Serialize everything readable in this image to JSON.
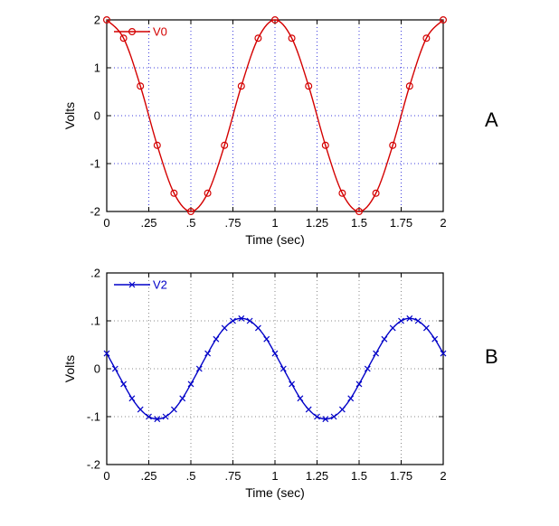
{
  "figure": {
    "background": "#ffffff"
  },
  "chart_data": [
    {
      "type": "line",
      "side_label": "A",
      "title": "",
      "xlabel": "Time (sec)",
      "ylabel": "Volts",
      "xlim": [
        0,
        2
      ],
      "ylim": [
        -2,
        2
      ],
      "grid": true,
      "grid_color": "#3d3dde",
      "legend_position": "top-left",
      "xticks": {
        "values": [
          0,
          0.25,
          0.5,
          0.75,
          1,
          1.25,
          1.5,
          1.75,
          2
        ],
        "labels": [
          "0",
          ".25",
          ".5",
          ".75",
          "1",
          "1.25",
          "1.5",
          "1.75",
          "2"
        ]
      },
      "yticks": {
        "values": [
          -2,
          -1,
          0,
          1,
          2
        ],
        "labels": [
          "-2",
          "-1",
          "0",
          "1",
          "2"
        ]
      },
      "series": [
        {
          "name": "V0",
          "color": "#d40000",
          "marker": "o",
          "x": [
            0,
            0.1,
            0.2,
            0.3,
            0.4,
            0.5,
            0.6,
            0.7,
            0.8,
            0.9,
            1,
            1.1,
            1.2,
            1.3,
            1.4,
            1.5,
            1.6,
            1.7,
            1.8,
            1.9,
            2
          ],
          "y": [
            2,
            1.618,
            0.618,
            -0.618,
            -1.618,
            -2,
            -1.618,
            -0.618,
            0.618,
            1.618,
            2,
            1.618,
            0.618,
            -0.618,
            -1.618,
            -2,
            -1.618,
            -0.618,
            0.618,
            1.618,
            2
          ]
        }
      ]
    },
    {
      "type": "line",
      "side_label": "B",
      "title": "",
      "xlabel": "Time (sec)",
      "ylabel": "Volts",
      "xlim": [
        0,
        2
      ],
      "ylim": [
        -0.2,
        0.2
      ],
      "grid": true,
      "grid_color": "#8a8a8a",
      "legend_position": "top-left",
      "xticks": {
        "values": [
          0,
          0.25,
          0.5,
          0.75,
          1,
          1.25,
          1.5,
          1.75,
          2
        ],
        "labels": [
          "0",
          ".25",
          ".5",
          ".75",
          "1",
          "1.25",
          "1.5",
          "1.75",
          "2"
        ]
      },
      "yticks": {
        "values": [
          -0.2,
          -0.1,
          0,
          0.1,
          0.2
        ],
        "labels": [
          "-.2",
          "-.1",
          "0",
          ".1",
          ".2"
        ]
      },
      "series": [
        {
          "name": "V2",
          "color": "#0000c8",
          "marker": "x",
          "x": [
            0,
            0.05,
            0.1,
            0.15,
            0.2,
            0.25,
            0.3,
            0.35,
            0.4,
            0.45,
            0.5,
            0.55,
            0.6,
            0.65,
            0.7,
            0.75,
            0.8,
            0.85,
            0.9,
            0.95,
            1,
            1.05,
            1.1,
            1.15,
            1.2,
            1.25,
            1.3,
            1.35,
            1.4,
            1.45,
            1.5,
            1.55,
            1.6,
            1.65,
            1.7,
            1.75,
            1.8,
            1.85,
            1.9,
            1.95,
            2
          ],
          "y": [
            0.032,
            0,
            -0.032,
            -0.062,
            -0.085,
            -0.1,
            -0.105,
            -0.1,
            -0.085,
            -0.062,
            -0.032,
            0,
            0.032,
            0.062,
            0.085,
            0.1,
            0.105,
            0.1,
            0.085,
            0.062,
            0.032,
            0,
            -0.032,
            -0.062,
            -0.085,
            -0.1,
            -0.105,
            -0.1,
            -0.085,
            -0.062,
            -0.032,
            0,
            0.032,
            0.062,
            0.085,
            0.1,
            0.105,
            0.1,
            0.085,
            0.062,
            0.032
          ]
        }
      ]
    }
  ]
}
